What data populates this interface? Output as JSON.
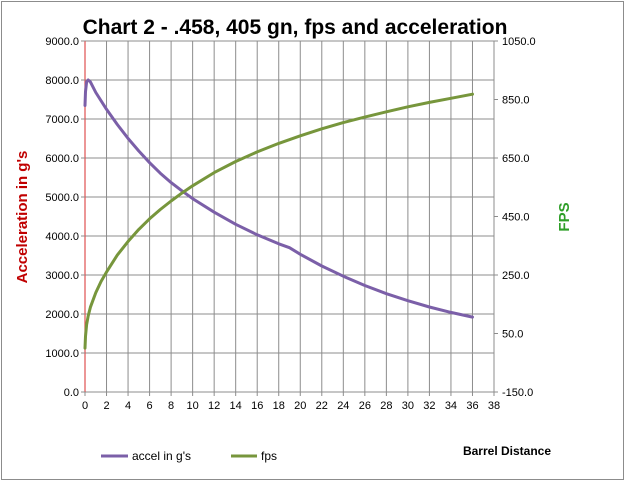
{
  "chart_data": {
    "type": "line",
    "title": "Chart 2 - .458, 405 gn,  fps and acceleration",
    "xlabel": "Barrel Distance",
    "ylabel_left": "Acceleration in g's",
    "ylabel_right": "FPS",
    "xlim": [
      0,
      38
    ],
    "ylim_left": [
      0,
      9000
    ],
    "ylim_right": [
      -150,
      1050
    ],
    "x_ticks": [
      "0",
      "2",
      "4",
      "6",
      "8",
      "10",
      "12",
      "14",
      "16",
      "18",
      "20",
      "22",
      "24",
      "26",
      "28",
      "30",
      "32",
      "34",
      "36",
      "38"
    ],
    "y_left_ticks": [
      "0.0",
      "1000.0",
      "2000.0",
      "3000.0",
      "4000.0",
      "5000.0",
      "6000.0",
      "7000.0",
      "8000.0",
      "9000.0"
    ],
    "y_right_ticks": [
      "-150.0",
      "50.0",
      "250.0",
      "450.0",
      "650.0",
      "850.0",
      "1050.0"
    ],
    "grid": true,
    "legend_position": "bottom-left",
    "series": [
      {
        "name": "accel  in g's",
        "axis": "left",
        "color": "#7b5fa8",
        "x": [
          0,
          0.05,
          0.15,
          0.3,
          0.5,
          1,
          2,
          3,
          4,
          5,
          6,
          7,
          8,
          9,
          10,
          12,
          14,
          16,
          18,
          19,
          20,
          22,
          24,
          26,
          28,
          30,
          32,
          34,
          36
        ],
        "y": [
          7350,
          7700,
          7950,
          8000,
          7950,
          7680,
          7250,
          6860,
          6500,
          6180,
          5880,
          5610,
          5370,
          5160,
          4960,
          4610,
          4300,
          4030,
          3800,
          3700,
          3530,
          3230,
          2970,
          2730,
          2520,
          2340,
          2180,
          2040,
          1920
        ]
      },
      {
        "name": "fps",
        "axis": "right",
        "color": "#77963c",
        "x": [
          0,
          0.05,
          0.15,
          0.3,
          0.5,
          1,
          1.5,
          2,
          3,
          4,
          5,
          6,
          7,
          8,
          9,
          10,
          12,
          14,
          16,
          18,
          20,
          22,
          24,
          26,
          28,
          30,
          32,
          34,
          36
        ],
        "y": [
          0,
          40,
          80,
          110,
          140,
          190,
          228,
          260,
          318,
          365,
          406,
          442,
          474,
          503,
          530,
          555,
          600,
          638,
          671,
          700,
          726,
          750,
          771,
          790,
          808,
          825,
          840,
          854,
          868
        ]
      }
    ]
  }
}
